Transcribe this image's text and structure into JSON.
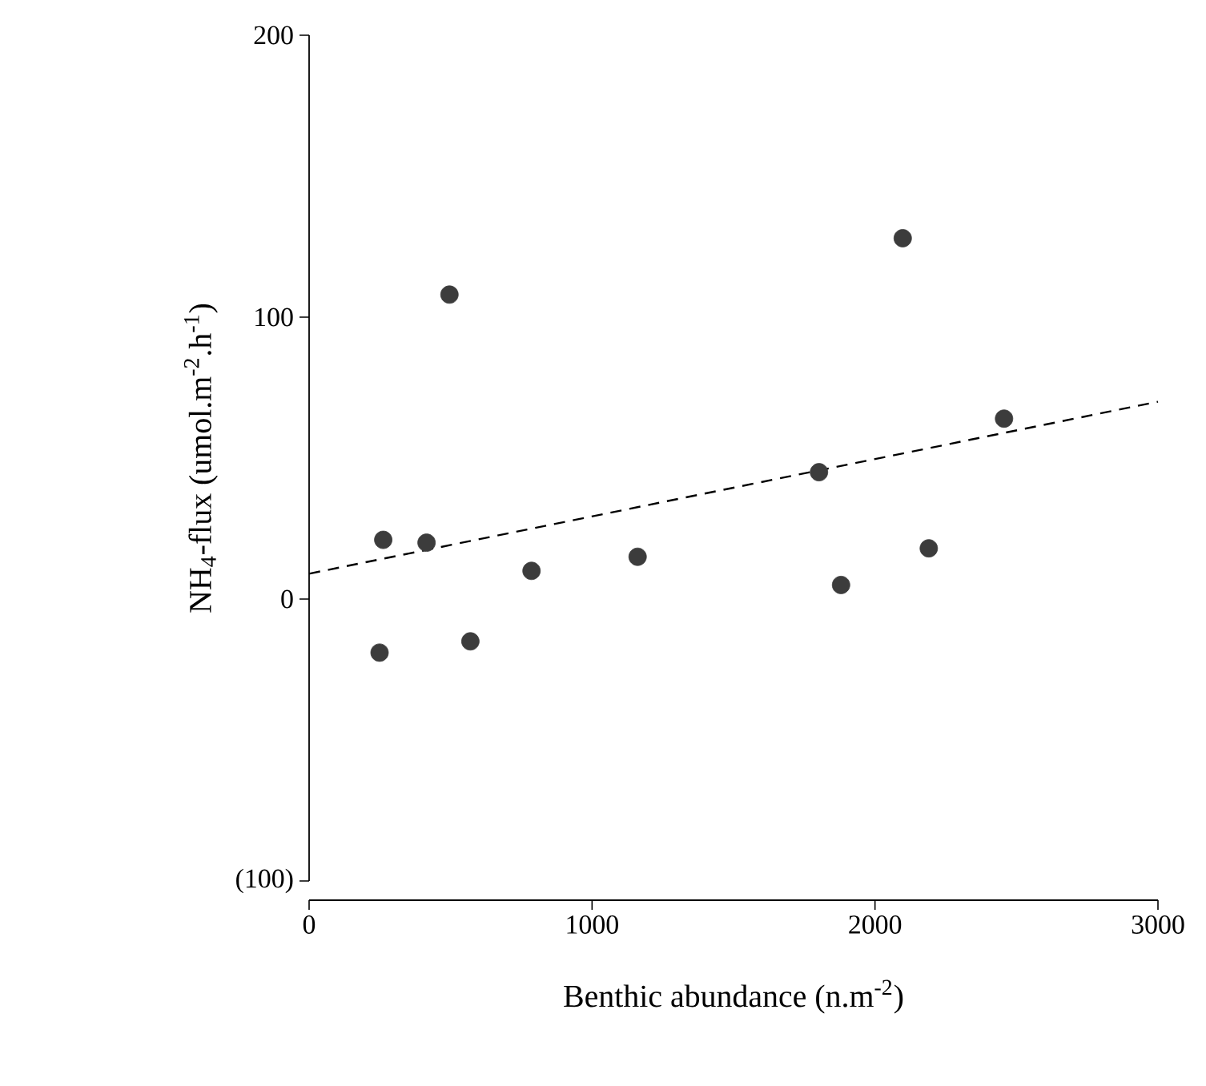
{
  "chart_data": {
    "type": "scatter",
    "xlabel": "Benthic abundance (n.m$^{-2}$)",
    "ylabel": "NH$_{4}$-flux (umol.m$^{-2}$.h$^{-1}$)",
    "xlim": [
      0,
      3000
    ],
    "ylim": [
      -100,
      200
    ],
    "xticks": [
      0,
      1000,
      2000,
      3000
    ],
    "yticks": [
      {
        "value": -100,
        "label": "(100)"
      },
      0,
      100,
      200
    ],
    "grid": false,
    "series": [
      {
        "marker": "circle",
        "color": "#3c3c3c",
        "x": [
          262,
          415,
          496,
          249,
          570,
          786,
          1161,
          1802,
          1880,
          2098,
          2190,
          2456
        ],
        "values": [
          21,
          20,
          108,
          -19,
          -15,
          10,
          15,
          45,
          5,
          128,
          18,
          64
        ]
      },
      {
        "type": "line",
        "marker": "none",
        "color": "#000000",
        "line_style": "dashed",
        "x": [
          0,
          3000
        ],
        "values": [
          9,
          70
        ]
      }
    ]
  }
}
